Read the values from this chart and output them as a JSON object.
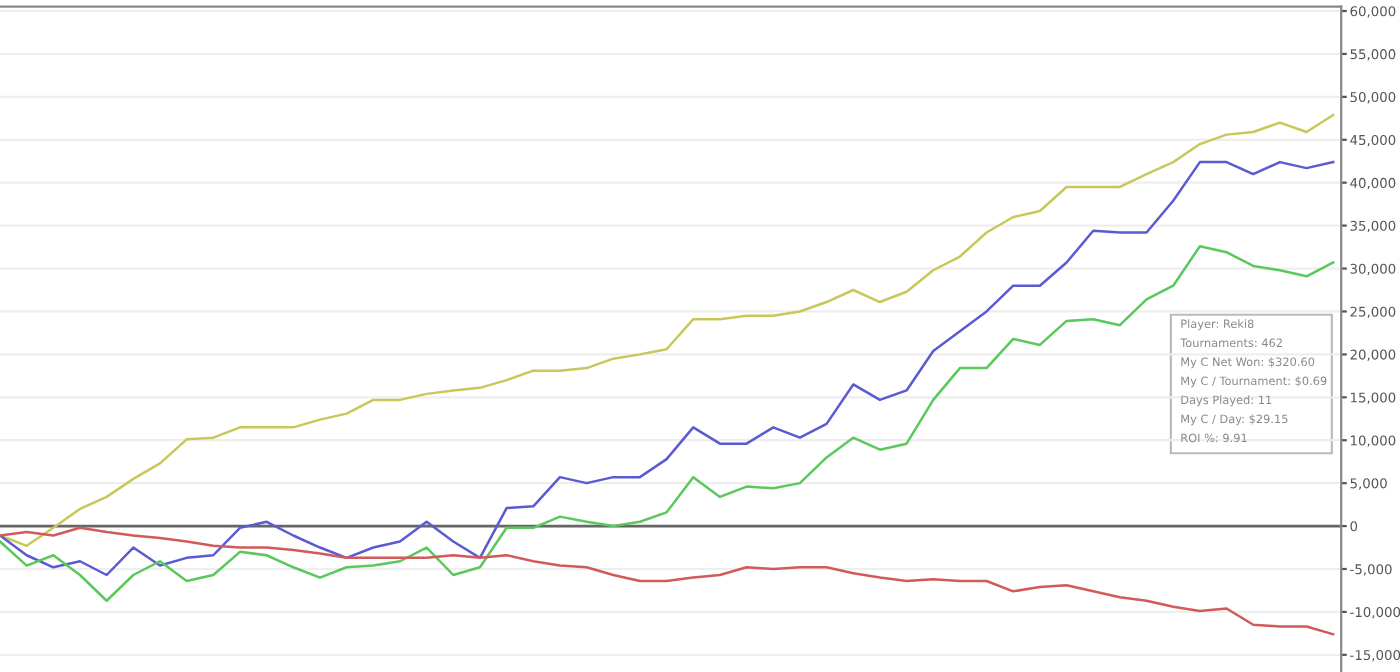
{
  "chart_data": {
    "type": "line",
    "categories": [
      null,
      null,
      null,
      null,
      null,
      null,
      null,
      null,
      null,
      null,
      null,
      null,
      null,
      null,
      null,
      null,
      null,
      null,
      null,
      null,
      null,
      null,
      null,
      null,
      null,
      null,
      null,
      null,
      null,
      null,
      null,
      null,
      null,
      null,
      null,
      null,
      null,
      null,
      null,
      null,
      null,
      null,
      null,
      null,
      null,
      null,
      null,
      null,
      null,
      null,
      null
    ],
    "series": [
      {
        "color": "#c8c85a",
        "values": [
          -1100,
          -2300,
          -200,
          2000,
          3400,
          5500,
          7300,
          10100,
          10300,
          11500,
          11500,
          11500,
          12400,
          13100,
          14700,
          14700,
          15400,
          15800,
          16100,
          17000,
          18100,
          18100,
          18400,
          19500,
          20000,
          20600,
          24100,
          24100,
          24500,
          24500,
          25000,
          26100,
          27500,
          26100,
          27300,
          29800,
          31400,
          34200,
          36000,
          36700,
          39500,
          39500,
          39500,
          41000,
          42400,
          44500,
          45600,
          45900,
          47000,
          45900,
          47900
        ]
      },
      {
        "color": "#5a5ad2",
        "values": [
          -1100,
          -3400,
          -4800,
          -4100,
          -5700,
          -2500,
          -4600,
          -3700,
          -3400,
          -200,
          500,
          -1100,
          -2500,
          -3700,
          -2500,
          -1800,
          500,
          -1800,
          -3700,
          2100,
          2300,
          5700,
          5000,
          5700,
          5700,
          7800,
          11500,
          9600,
          9600,
          11500,
          10300,
          11900,
          16500,
          14700,
          15800,
          20400,
          22700,
          25000,
          28000,
          28000,
          30700,
          34400,
          34200,
          34200,
          37900,
          42400,
          42400,
          41000,
          42400,
          41700,
          42400
        ]
      },
      {
        "color": "#5ac85a",
        "values": [
          -1800,
          -4600,
          -3400,
          -5700,
          -8700,
          -5700,
          -4100,
          -6400,
          -5700,
          -3000,
          -3400,
          -4800,
          -6000,
          -4800,
          -4600,
          -4100,
          -2500,
          -5700,
          -4800,
          -200,
          -200,
          1100,
          500,
          0,
          500,
          1600,
          5700,
          3400,
          4600,
          4400,
          5000,
          8000,
          10300,
          8900,
          9600,
          14700,
          18400,
          18400,
          21800,
          21100,
          23900,
          24100,
          23400,
          26400,
          28000,
          32600,
          31900,
          30300,
          29800,
          29100,
          30700
        ]
      },
      {
        "color": "#d25a5a",
        "values": [
          -1100,
          -700,
          -1100,
          -200,
          -700,
          -1100,
          -1400,
          -1800,
          -2300,
          -2500,
          -2500,
          -2800,
          -3200,
          -3700,
          -3700,
          -3700,
          -3700,
          -3400,
          -3700,
          -3400,
          -4100,
          -4600,
          -4800,
          -5700,
          -6400,
          -6400,
          -6000,
          -5700,
          -4800,
          -5000,
          -4800,
          -4800,
          -5500,
          -6000,
          -6400,
          -6200,
          -6400,
          -6400,
          -7600,
          -7100,
          -6900,
          -7600,
          -8300,
          -8700,
          -9400,
          -9900,
          -9600,
          -11500,
          -11700,
          -11700,
          -12600
        ]
      }
    ],
    "ylim": [
      -17000,
      60500
    ],
    "yticks": [
      {
        "value": -15000,
        "label": "-15,000"
      },
      {
        "value": -10000,
        "label": "-10,000"
      },
      {
        "value": -5000,
        "label": "-5,000"
      },
      0,
      {
        "value": 5000,
        "label": "5,000"
      },
      {
        "value": 10000,
        "label": "10,000"
      },
      {
        "value": 15000,
        "label": "15,000"
      },
      {
        "value": 20000,
        "label": "20,000"
      },
      {
        "value": 25000,
        "label": "25,000"
      },
      {
        "value": 30000,
        "label": "30,000"
      },
      {
        "value": 35000,
        "label": "35,000"
      },
      {
        "value": 40000,
        "label": "40,000"
      },
      {
        "value": 45000,
        "label": "45,000"
      },
      {
        "value": 50000,
        "label": "50,000"
      },
      {
        "value": 55000,
        "label": "55,000"
      },
      {
        "value": 60000,
        "label": "60,000"
      }
    ],
    "tick_labels": "y",
    "grid": "y",
    "ref_lines": [
      {
        "axis": "y",
        "value": 0,
        "color": "#666666"
      }
    ],
    "annotations": [
      "Player: Reki8",
      "Tournaments: 462",
      "My C Net Won: $320.60",
      "My C / Tournament: $0.69",
      "Days Played: 11",
      "My C / Day: $29.15",
      "ROI %: 9.91"
    ]
  }
}
